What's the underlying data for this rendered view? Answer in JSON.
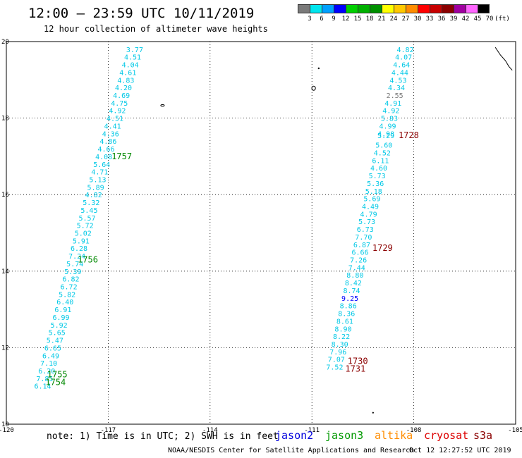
{
  "header": {
    "title": "12:00 — 23:59 UTC 10/11/2019",
    "subtitle": "12 hour collection of altimeter wave heights"
  },
  "colorbar": {
    "unit": "(ft)",
    "ticks": [
      "3",
      "6",
      "9",
      "12",
      "15",
      "18",
      "21",
      "24",
      "27",
      "30",
      "33",
      "36",
      "39",
      "42",
      "45",
      "70"
    ],
    "colors": [
      "#7a7a7a",
      "#00e5ee",
      "#00a0ff",
      "#0000ff",
      "#00d000",
      "#00b000",
      "#009000",
      "#ffff00",
      "#ffc800",
      "#ff8c00",
      "#ff0000",
      "#c80000",
      "#8b0000",
      "#a000a0",
      "#ff66ff",
      "#000000"
    ]
  },
  "map": {
    "lon_ticks": [
      "-120",
      "-117",
      "-114",
      "-111",
      "-108",
      "-105"
    ],
    "lat_ticks": [
      "20",
      "18",
      "16",
      "14",
      "12",
      "10"
    ],
    "track1_color": "#00c8e6",
    "track1": [
      {
        "lat": 19.8,
        "lon": -116.22,
        "v": "3.77"
      },
      {
        "lat": 19.6,
        "lon": -116.28,
        "v": "4.51"
      },
      {
        "lat": 19.4,
        "lon": -116.35,
        "v": "4.04"
      },
      {
        "lat": 19.2,
        "lon": -116.42,
        "v": "4.61"
      },
      {
        "lat": 19.0,
        "lon": -116.48,
        "v": "4.83"
      },
      {
        "lat": 18.8,
        "lon": -116.55,
        "v": "4.20"
      },
      {
        "lat": 18.6,
        "lon": -116.61,
        "v": "4.69"
      },
      {
        "lat": 18.4,
        "lon": -116.67,
        "v": "4.75"
      },
      {
        "lat": 18.2,
        "lon": -116.73,
        "v": "4.92"
      },
      {
        "lat": 18.0,
        "lon": -116.8,
        "v": "4.51"
      },
      {
        "lat": 17.8,
        "lon": -116.87,
        "v": "4.41"
      },
      {
        "lat": 17.6,
        "lon": -116.93,
        "v": "4.36"
      },
      {
        "lat": 17.4,
        "lon": -117.0,
        "v": "4.86"
      },
      {
        "lat": 17.2,
        "lon": -117.06,
        "v": "4.66"
      },
      {
        "lat": 17.0,
        "lon": -117.13,
        "v": "4.08"
      },
      {
        "lat": 16.8,
        "lon": -117.19,
        "v": "5.64"
      },
      {
        "lat": 16.6,
        "lon": -117.25,
        "v": "4.71"
      },
      {
        "lat": 16.4,
        "lon": -117.31,
        "v": "5.13"
      },
      {
        "lat": 16.2,
        "lon": -117.37,
        "v": "5.89"
      },
      {
        "lat": 16.0,
        "lon": -117.43,
        "v": "4.82"
      },
      {
        "lat": 15.8,
        "lon": -117.5,
        "v": "5.32"
      },
      {
        "lat": 15.6,
        "lon": -117.56,
        "v": "5.45"
      },
      {
        "lat": 15.4,
        "lon": -117.62,
        "v": "5.57"
      },
      {
        "lat": 15.2,
        "lon": -117.68,
        "v": "5.72"
      },
      {
        "lat": 15.0,
        "lon": -117.74,
        "v": "5.02"
      },
      {
        "lat": 14.8,
        "lon": -117.8,
        "v": "5.91"
      },
      {
        "lat": 14.6,
        "lon": -117.86,
        "v": "6.28"
      },
      {
        "lat": 14.4,
        "lon": -117.92,
        "v": "7.24"
      },
      {
        "lat": 14.2,
        "lon": -117.98,
        "v": "5.74"
      },
      {
        "lat": 14.0,
        "lon": -118.04,
        "v": "5.39"
      },
      {
        "lat": 13.8,
        "lon": -118.1,
        "v": "6.82"
      },
      {
        "lat": 13.6,
        "lon": -118.16,
        "v": "6.72"
      },
      {
        "lat": 13.4,
        "lon": -118.21,
        "v": "5.82"
      },
      {
        "lat": 13.2,
        "lon": -118.27,
        "v": "6.40"
      },
      {
        "lat": 13.0,
        "lon": -118.33,
        "v": "6.91"
      },
      {
        "lat": 12.8,
        "lon": -118.39,
        "v": "6.99"
      },
      {
        "lat": 12.6,
        "lon": -118.45,
        "v": "5.92"
      },
      {
        "lat": 12.4,
        "lon": -118.51,
        "v": "5.65"
      },
      {
        "lat": 12.2,
        "lon": -118.57,
        "v": "5.47"
      },
      {
        "lat": 12.0,
        "lon": -118.63,
        "v": "6.65"
      },
      {
        "lat": 11.8,
        "lon": -118.69,
        "v": "6.49"
      },
      {
        "lat": 11.6,
        "lon": -118.75,
        "v": "7.10"
      },
      {
        "lat": 11.4,
        "lon": -118.81,
        "v": "6.20"
      },
      {
        "lat": 11.2,
        "lon": -118.87,
        "v": "7.85"
      },
      {
        "lat": 11.0,
        "lon": -118.93,
        "v": "6.14"
      }
    ],
    "track2_color": "#00c8e6",
    "track2": [
      {
        "lat": 19.8,
        "lon": -108.25,
        "v": "4.82",
        "c": "#00c8e6"
      },
      {
        "lat": 19.6,
        "lon": -108.3,
        "v": "4.07",
        "c": "#00c8e6"
      },
      {
        "lat": 19.4,
        "lon": -108.36,
        "v": "4.64",
        "c": "#00c8e6"
      },
      {
        "lat": 19.2,
        "lon": -108.41,
        "v": "4.44",
        "c": "#00c8e6"
      },
      {
        "lat": 19.0,
        "lon": -108.46,
        "v": "4.53",
        "c": "#00c8e6"
      },
      {
        "lat": 18.8,
        "lon": -108.51,
        "v": "4.34",
        "c": "#00c8e6"
      },
      {
        "lat": 18.6,
        "lon": -108.56,
        "v": "2.55",
        "c": "#7a7a7a"
      },
      {
        "lat": 18.4,
        "lon": -108.61,
        "v": "4.91",
        "c": "#00c8e6"
      },
      {
        "lat": 18.2,
        "lon": -108.67,
        "v": "4.92",
        "c": "#00c8e6"
      },
      {
        "lat": 18.0,
        "lon": -108.72,
        "v": "5.83",
        "c": "#00c8e6"
      },
      {
        "lat": 17.8,
        "lon": -108.77,
        "v": "4.99",
        "c": "#00c8e6"
      },
      {
        "lat": 17.6,
        "lon": -108.82,
        "v": "4.98",
        "c": "#00c8e6"
      },
      {
        "lat": 17.55,
        "lon": -108.82,
        "v": "5.29",
        "c": "#00c8e6"
      },
      {
        "lat": 17.3,
        "lon": -108.88,
        "v": "5.60",
        "c": "#00c8e6"
      },
      {
        "lat": 17.1,
        "lon": -108.93,
        "v": "4.52",
        "c": "#00c8e6"
      },
      {
        "lat": 16.9,
        "lon": -108.98,
        "v": "6.11",
        "c": "#00c8e6"
      },
      {
        "lat": 16.7,
        "lon": -109.03,
        "v": "4.60",
        "c": "#00c8e6"
      },
      {
        "lat": 16.5,
        "lon": -109.08,
        "v": "5.73",
        "c": "#00c8e6"
      },
      {
        "lat": 16.3,
        "lon": -109.13,
        "v": "5.36",
        "c": "#00c8e6"
      },
      {
        "lat": 16.1,
        "lon": -109.18,
        "v": "5.18",
        "c": "#00c8e6"
      },
      {
        "lat": 15.9,
        "lon": -109.23,
        "v": "5.69",
        "c": "#00c8e6"
      },
      {
        "lat": 15.7,
        "lon": -109.28,
        "v": "4.49",
        "c": "#00c8e6"
      },
      {
        "lat": 15.5,
        "lon": -109.33,
        "v": "4.79",
        "c": "#00c8e6"
      },
      {
        "lat": 15.3,
        "lon": -109.38,
        "v": "5.73",
        "c": "#00c8e6"
      },
      {
        "lat": 15.1,
        "lon": -109.43,
        "v": "6.73",
        "c": "#00c8e6"
      },
      {
        "lat": 14.9,
        "lon": -109.48,
        "v": "7.70",
        "c": "#00c8e6"
      },
      {
        "lat": 14.7,
        "lon": -109.53,
        "v": "6.87",
        "c": "#00c8e6"
      },
      {
        "lat": 14.5,
        "lon": -109.58,
        "v": "6.66",
        "c": "#00c8e6"
      },
      {
        "lat": 14.3,
        "lon": -109.63,
        "v": "7.26",
        "c": "#00c8e6"
      },
      {
        "lat": 14.1,
        "lon": -109.68,
        "v": "7.44",
        "c": "#00c8e6"
      },
      {
        "lat": 13.9,
        "lon": -109.73,
        "v": "8.80",
        "c": "#00c8e6"
      },
      {
        "lat": 13.7,
        "lon": -109.78,
        "v": "8.42",
        "c": "#00c8e6"
      },
      {
        "lat": 13.5,
        "lon": -109.83,
        "v": "8.74",
        "c": "#00c8e6"
      },
      {
        "lat": 13.3,
        "lon": -109.88,
        "v": "9.25",
        "c": "#0000ff"
      },
      {
        "lat": 13.1,
        "lon": -109.93,
        "v": "8.86",
        "c": "#00c8e6"
      },
      {
        "lat": 12.9,
        "lon": -109.98,
        "v": "8.36",
        "c": "#00c8e6"
      },
      {
        "lat": 12.7,
        "lon": -110.03,
        "v": "8.61",
        "c": "#00c8e6"
      },
      {
        "lat": 12.5,
        "lon": -110.08,
        "v": "8.90",
        "c": "#00c8e6"
      },
      {
        "lat": 12.3,
        "lon": -110.13,
        "v": "8.22",
        "c": "#00c8e6"
      },
      {
        "lat": 12.1,
        "lon": -110.18,
        "v": "8.30",
        "c": "#00c8e6"
      },
      {
        "lat": 11.9,
        "lon": -110.23,
        "v": "7.96",
        "c": "#00c8e6"
      },
      {
        "lat": 11.7,
        "lon": -110.28,
        "v": "7.07",
        "c": "#00c8e6"
      },
      {
        "lat": 11.5,
        "lon": -110.33,
        "v": "7.52",
        "c": "#00c8e6"
      }
    ],
    "time_labels": [
      {
        "lat": 17.0,
        "lon": -116.9,
        "v": "1757",
        "c": "#008800"
      },
      {
        "lat": 14.3,
        "lon": -117.9,
        "v": "1756",
        "c": "#008800"
      },
      {
        "lat": 11.3,
        "lon": -118.8,
        "v": "1755",
        "c": "#008800"
      },
      {
        "lat": 11.1,
        "lon": -118.85,
        "v": "1754",
        "c": "#008800"
      },
      {
        "lat": 17.55,
        "lon": -108.45,
        "v": "1728",
        "c": "#8b0000"
      },
      {
        "lat": 14.6,
        "lon": -109.22,
        "v": "1729",
        "c": "#8b0000"
      },
      {
        "lat": 11.65,
        "lon": -109.95,
        "v": "1730",
        "c": "#8b0000"
      },
      {
        "lat": 11.45,
        "lon": -110.02,
        "v": "1731",
        "c": "#8b0000"
      }
    ]
  },
  "legend": {
    "note": "note: 1) Time is in UTC; 2) SWH is in feet",
    "satellites": [
      {
        "name": "jason2",
        "color": "#0000dd"
      },
      {
        "name": "jason3",
        "color": "#009900"
      },
      {
        "name": "altika",
        "color": "#ff8c00"
      },
      {
        "name": "cryosat",
        "color": "#dd0000"
      },
      {
        "name": "s3a",
        "color": "#8b0000"
      }
    ]
  },
  "footer": {
    "credit": "NOAA/NESDIS Center for Satellite Applications and Research",
    "timestamp": "Oct 12 12:27:52 UTC 2019"
  }
}
